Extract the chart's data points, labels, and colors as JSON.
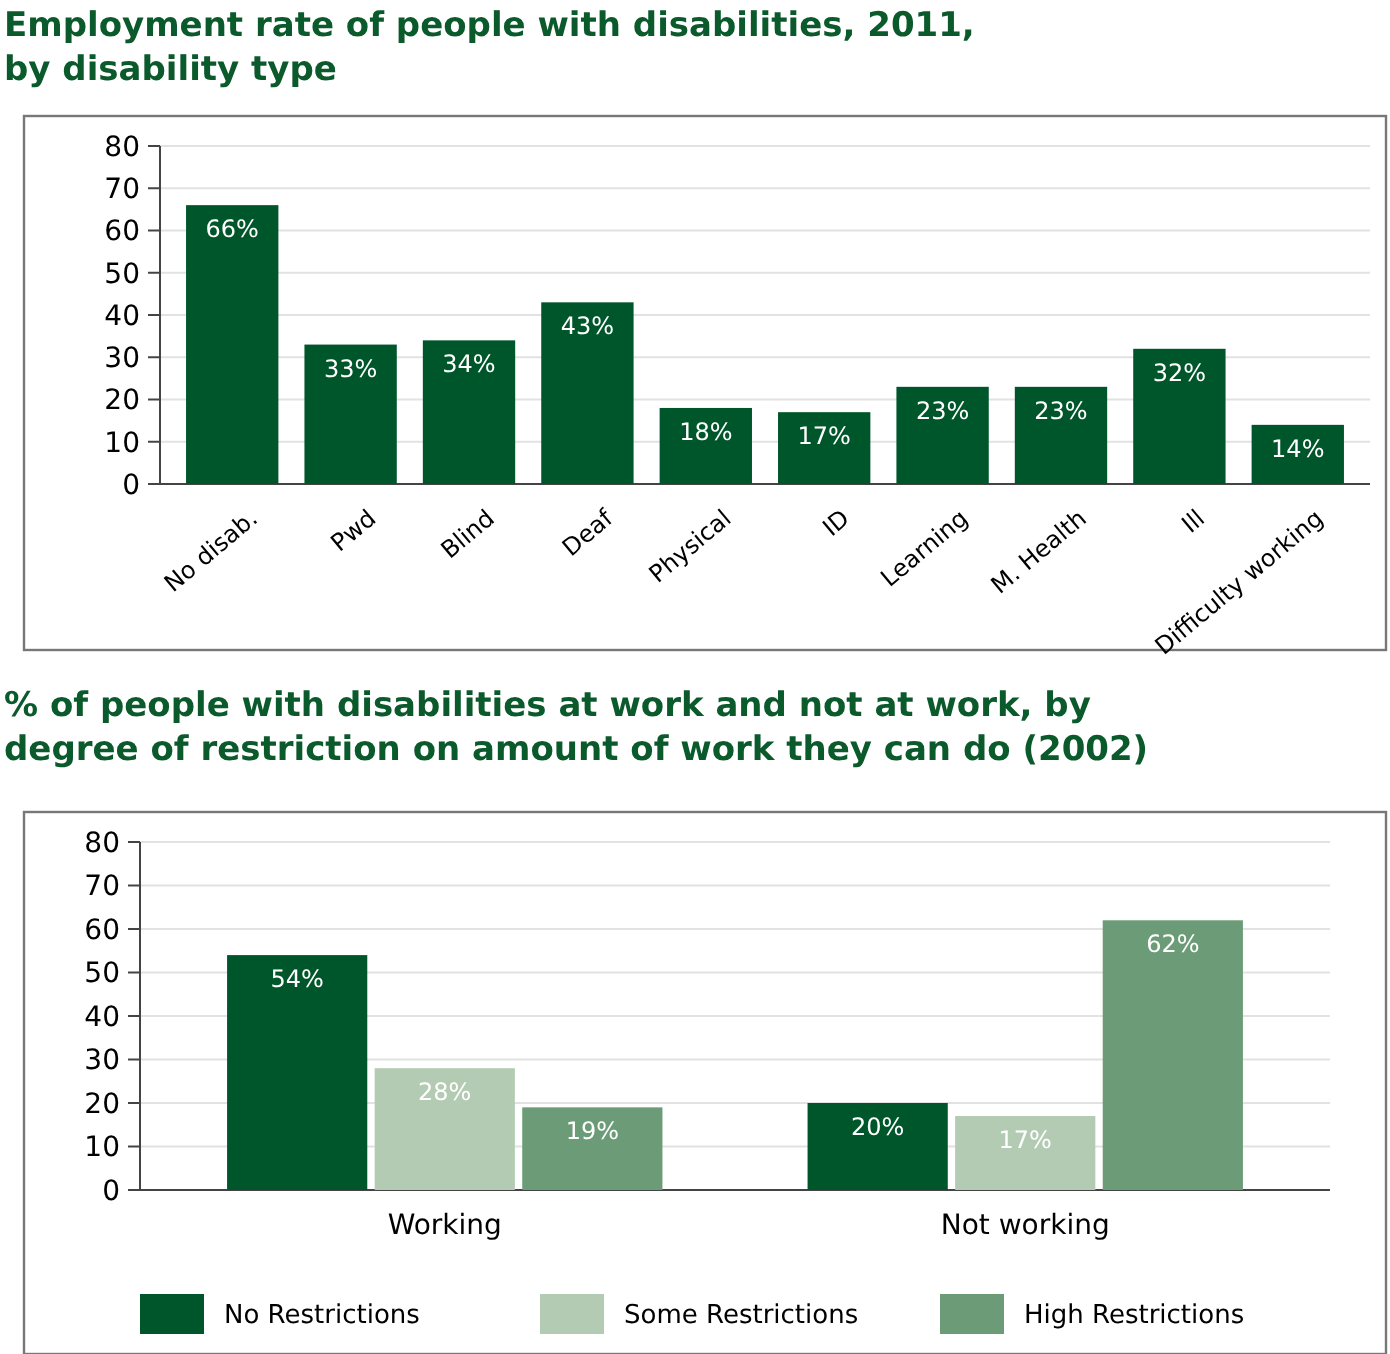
{
  "chart_data": [
    {
      "type": "bar",
      "title": "Employment rate of people with disabilities, 2011,\nby disability type",
      "categories": [
        "No disab.",
        "Pwd",
        "Blind",
        "Deaf",
        "Physical",
        "ID",
        "Learning",
        "M. Health",
        "Ill",
        "Difficulty working"
      ],
      "values": [
        66,
        33,
        34,
        43,
        18,
        17,
        23,
        23,
        32,
        14
      ],
      "value_labels": [
        "66%",
        "33%",
        "34%",
        "43%",
        "18%",
        "17%",
        "23%",
        "23%",
        "32%",
        "14%"
      ],
      "color": "#00562b",
      "ylim": [
        0,
        80
      ],
      "yticks": [
        0,
        10,
        20,
        30,
        40,
        50,
        60,
        70,
        80
      ],
      "grid": "y"
    },
    {
      "type": "bar",
      "title": "% of people with disabilities at work and not at work, by\ndegree of restriction on amount of work they can do (2002)",
      "categories": [
        "Working",
        "Not working"
      ],
      "series": [
        {
          "name": "No Restrictions",
          "color": "#00562b",
          "values": [
            54,
            20
          ],
          "value_labels": [
            "54%",
            "20%"
          ]
        },
        {
          "name": "Some Restrictions",
          "color": "#b3cbb3",
          "values": [
            28,
            17
          ],
          "value_labels": [
            "28%",
            "17%"
          ]
        },
        {
          "name": "High Restrictions",
          "color": "#6b9c77",
          "values": [
            19,
            62
          ],
          "value_labels": [
            "19%",
            "62%"
          ]
        }
      ],
      "ylim": [
        0,
        80
      ],
      "yticks": [
        0,
        10,
        20,
        30,
        40,
        50,
        60,
        70,
        80
      ],
      "grid": "y",
      "legend": "bottom"
    }
  ]
}
